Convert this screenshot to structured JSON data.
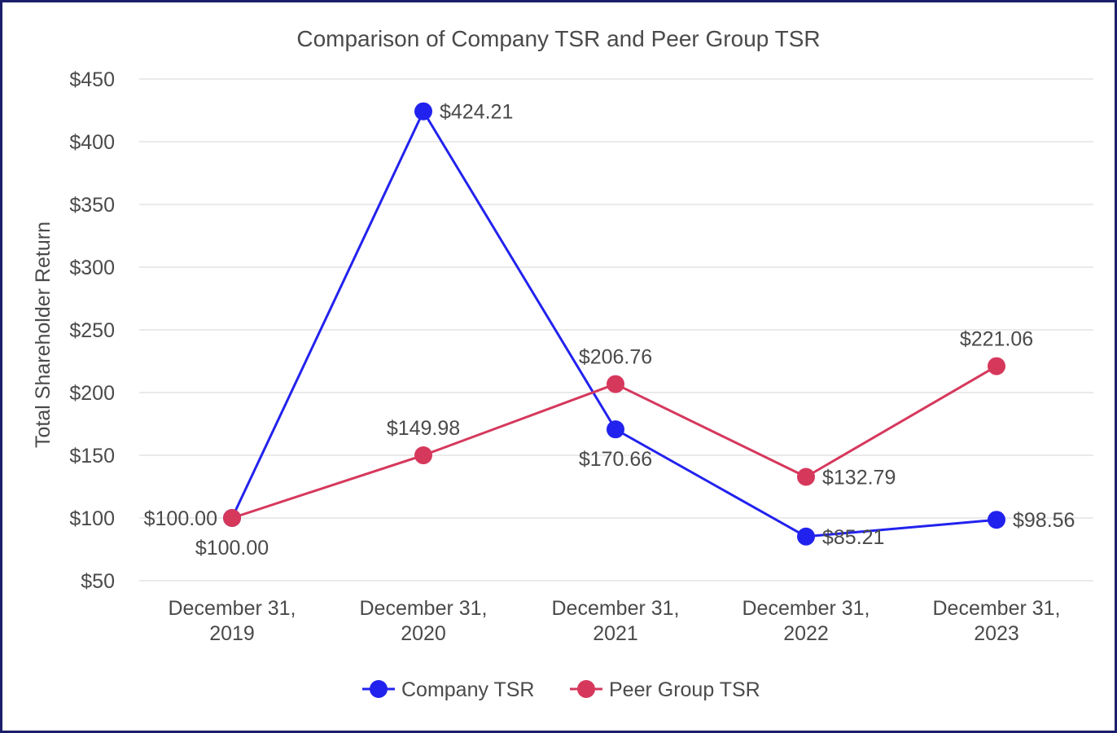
{
  "chart_data": {
    "type": "line",
    "title": "Comparison of Company TSR and Peer Group TSR",
    "xlabel": "",
    "ylabel": "Total Shareholder Return",
    "ylim": [
      50,
      450
    ],
    "yticks": [
      50,
      100,
      150,
      200,
      250,
      300,
      350,
      400,
      450
    ],
    "ytick_labels": [
      "$50",
      "$100",
      "$150",
      "$200",
      "$250",
      "$300",
      "$350",
      "$400",
      "$450"
    ],
    "grid": true,
    "legend_position": "bottom-center",
    "categories": [
      [
        "December 31,",
        "2019"
      ],
      [
        "December 31,",
        "2020"
      ],
      [
        "December 31,",
        "2021"
      ],
      [
        "December 31,",
        "2022"
      ],
      [
        "December 31,",
        "2023"
      ]
    ],
    "series": [
      {
        "name": "Company TSR",
        "color": "#2222ee",
        "values": [
          100.0,
          424.21,
          170.66,
          85.21,
          98.56
        ],
        "labels": [
          "$100.00",
          "$424.21",
          "$170.66",
          "$85.21",
          "$98.56"
        ],
        "label_positions": [
          "below",
          "right",
          "below",
          "right",
          "right"
        ]
      },
      {
        "name": "Peer Group TSR",
        "color": "#d6385c",
        "values": [
          100.0,
          149.98,
          206.76,
          132.79,
          221.06
        ],
        "labels": [
          "$100.00",
          "$149.98",
          "$206.76",
          "$132.79",
          "$221.06"
        ],
        "label_positions": [
          "left",
          "above",
          "above",
          "right",
          "above"
        ]
      }
    ]
  }
}
